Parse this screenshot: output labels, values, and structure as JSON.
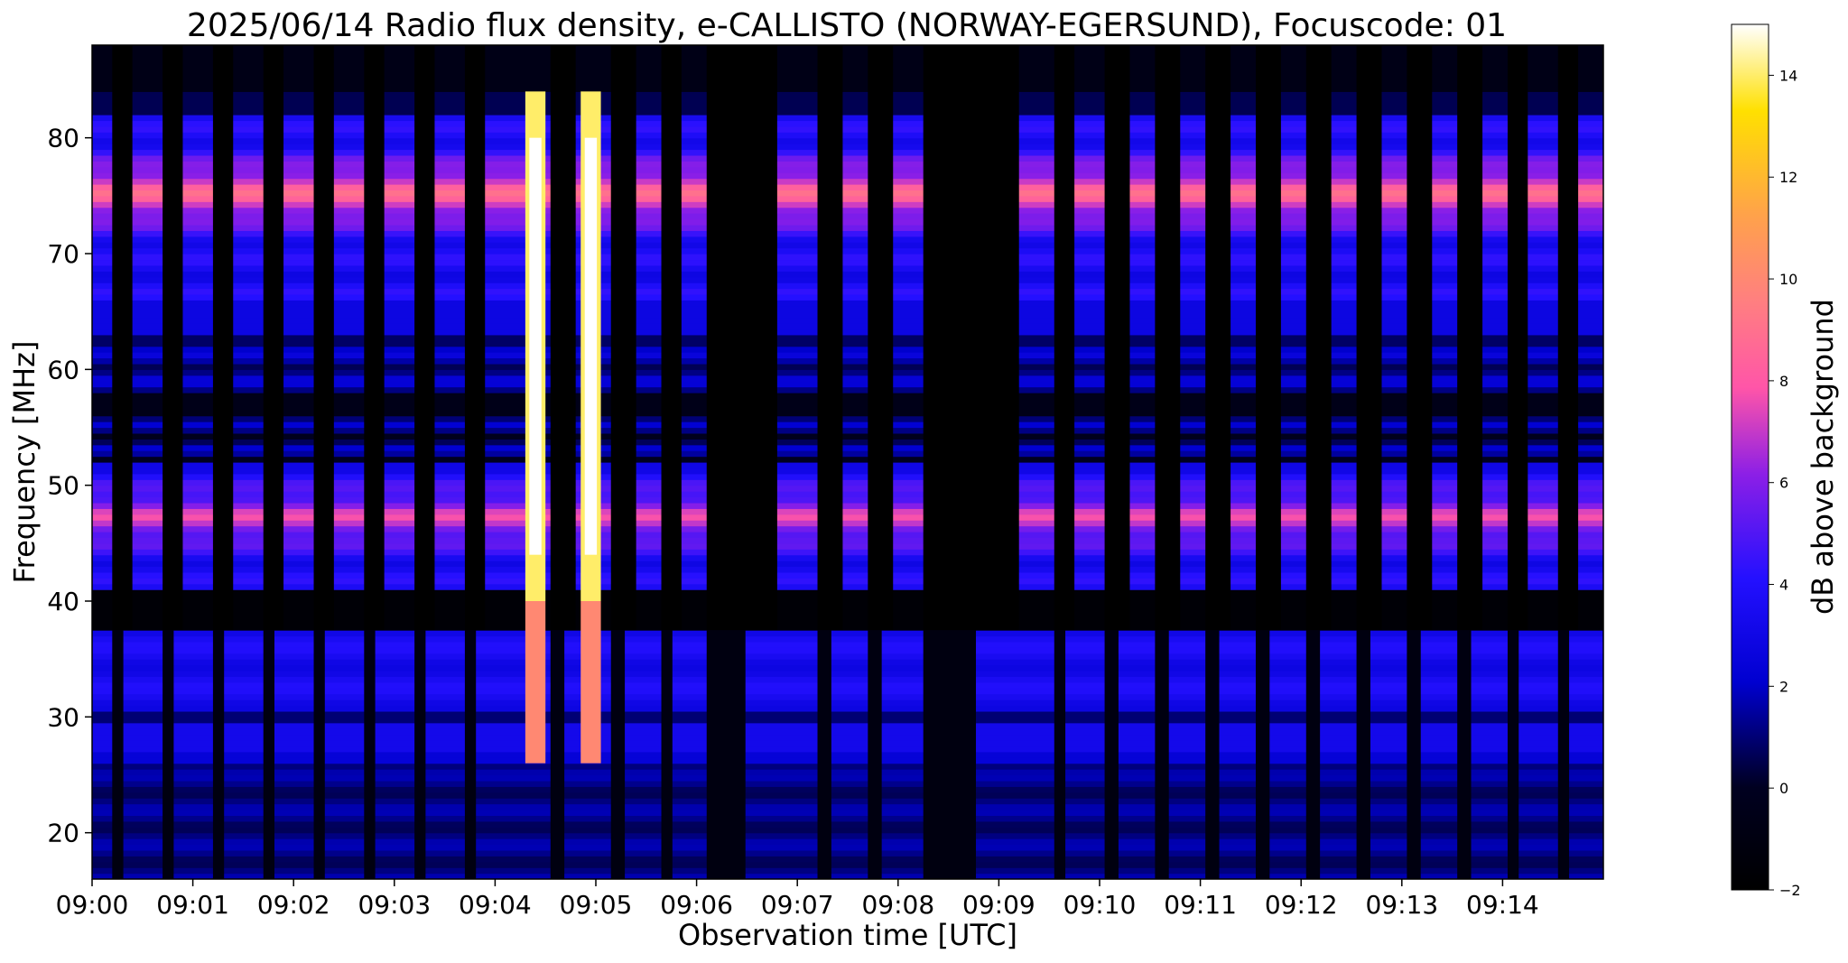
{
  "chart_data": {
    "type": "heatmap",
    "title": "2025/06/14  Radio flux density, e-CALLISTO (NORWAY-EGERSUND), Focuscode: 01",
    "xlabel": "Observation time [UTC]",
    "ylabel": "Frequency [MHz]",
    "x_ticks": [
      "09:00",
      "09:01",
      "09:02",
      "09:03",
      "09:04",
      "09:05",
      "09:06",
      "09:07",
      "09:08",
      "09:09",
      "09:10",
      "09:11",
      "09:12",
      "09:13",
      "09:14"
    ],
    "x_range_minutes": [
      0,
      15
    ],
    "y_ticks": [
      20,
      30,
      40,
      50,
      60,
      70,
      80
    ],
    "y_range_mhz": [
      16,
      88
    ],
    "colorbar": {
      "label": "dB above background",
      "ticks": [
        -2,
        0,
        2,
        4,
        6,
        8,
        10,
        12,
        14
      ],
      "range": [
        -2,
        15
      ],
      "colormap": "gnuplot2"
    },
    "bursts": [
      {
        "start_min": 4.3,
        "end_min": 4.5,
        "peak_db": 15
      },
      {
        "start_min": 4.85,
        "end_min": 5.05,
        "peak_db": 15
      }
    ],
    "gaps_min": [
      [
        0.2,
        0.4
      ],
      [
        0.7,
        0.9
      ],
      [
        1.2,
        1.4
      ],
      [
        1.7,
        1.9
      ],
      [
        2.2,
        2.4
      ],
      [
        2.7,
        2.9
      ],
      [
        3.2,
        3.4
      ],
      [
        3.7,
        3.9
      ],
      [
        4.55,
        4.8
      ],
      [
        5.15,
        5.4
      ],
      [
        5.65,
        5.85
      ],
      [
        6.1,
        6.8
      ],
      [
        7.2,
        7.45
      ],
      [
        7.7,
        7.95
      ],
      [
        8.25,
        9.2
      ],
      [
        9.55,
        9.75
      ],
      [
        10.05,
        10.3
      ],
      [
        10.55,
        10.8
      ],
      [
        11.05,
        11.3
      ],
      [
        11.55,
        11.8
      ],
      [
        12.05,
        12.3
      ],
      [
        12.55,
        12.8
      ],
      [
        13.05,
        13.3
      ],
      [
        13.55,
        13.8
      ],
      [
        14.05,
        14.25
      ],
      [
        14.55,
        14.75
      ]
    ],
    "bright_bands_mhz": [
      75,
      47
    ],
    "grid": false
  }
}
